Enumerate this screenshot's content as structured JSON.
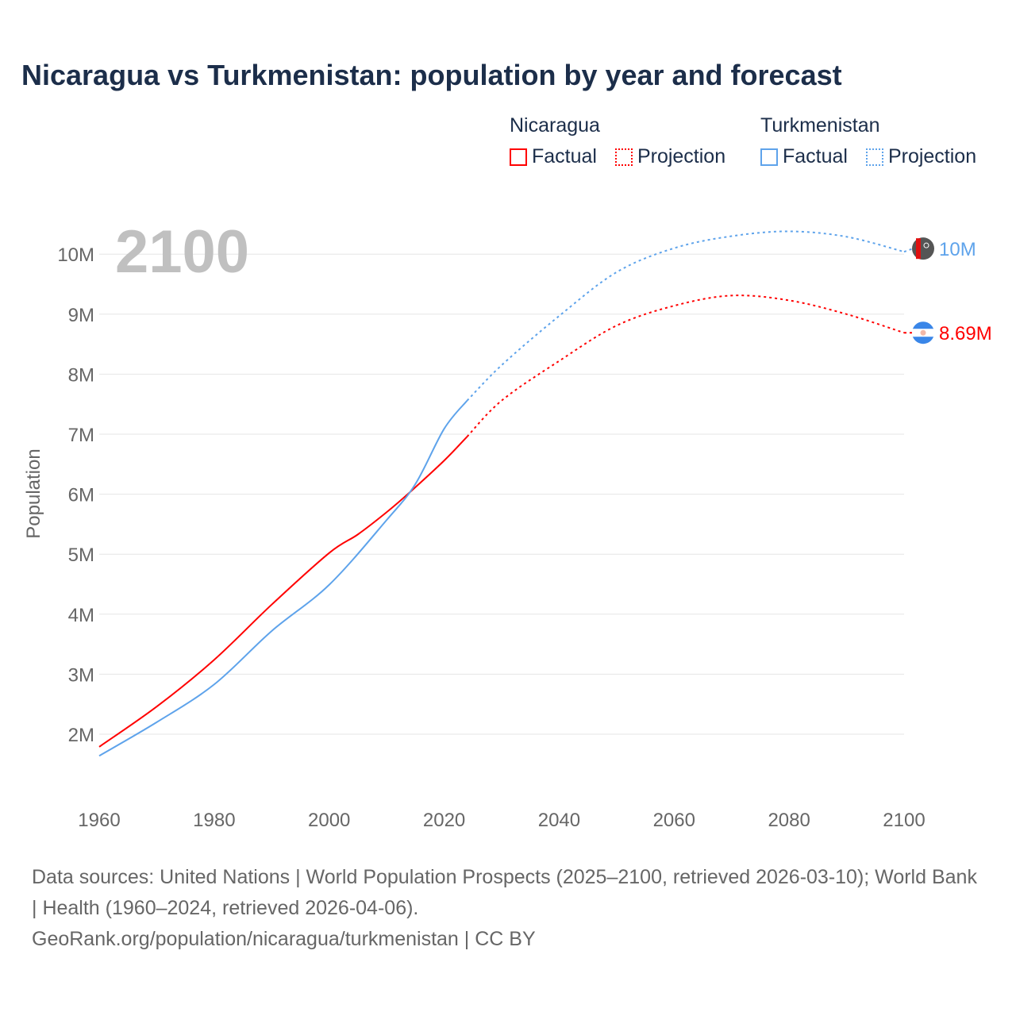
{
  "title": "Nicaragua vs Turkmenistan: population by year and forecast",
  "legend": {
    "groups": [
      {
        "name": "Nicaragua",
        "factual": "Factual",
        "projection": "Projection",
        "color": "#ff0000"
      },
      {
        "name": "Turkmenistan",
        "factual": "Factual",
        "projection": "Projection",
        "color": "#5ea3eb"
      }
    ]
  },
  "year_label": "2100",
  "footer": {
    "sources": "Data sources: United Nations | World Population Prospects (2025–2100, retrieved 2026-03-10); World Bank | Health (1960–2024, retrieved 2026-04-06).",
    "link": "GeoRank.org/population/nicaragua/turkmenistan | CC BY"
  },
  "chart_data": {
    "type": "line",
    "ylabel": "Population",
    "xlim": [
      1960,
      2100
    ],
    "ylim": [
      1,
      10.9
    ],
    "x_ticks": [
      1960,
      1980,
      2000,
      2020,
      2040,
      2060,
      2080,
      2100
    ],
    "y_ticks": [
      {
        "v": 2,
        "label": "2M"
      },
      {
        "v": 3,
        "label": "3M"
      },
      {
        "v": 4,
        "label": "4M"
      },
      {
        "v": 5,
        "label": "5M"
      },
      {
        "v": 6,
        "label": "6M"
      },
      {
        "v": 7,
        "label": "7M"
      },
      {
        "v": 8,
        "label": "8M"
      },
      {
        "v": 9,
        "label": "9M"
      },
      {
        "v": 10,
        "label": "10M"
      }
    ],
    "grid": true,
    "series": [
      {
        "name": "Nicaragua",
        "color": "#ff0000",
        "end_label": "8.69M",
        "factual": [
          [
            1960,
            1.79
          ],
          [
            1970,
            2.46
          ],
          [
            1980,
            3.24
          ],
          [
            1990,
            4.16
          ],
          [
            2000,
            5.02
          ],
          [
            2005,
            5.33
          ],
          [
            2010,
            5.7
          ],
          [
            2014,
            6.03
          ],
          [
            2020,
            6.56
          ],
          [
            2024,
            6.96
          ]
        ],
        "projection": [
          [
            2024,
            6.96
          ],
          [
            2030,
            7.56
          ],
          [
            2040,
            8.22
          ],
          [
            2050,
            8.81
          ],
          [
            2060,
            9.14
          ],
          [
            2070,
            9.31
          ],
          [
            2080,
            9.23
          ],
          [
            2090,
            9.0
          ],
          [
            2100,
            8.69
          ]
        ]
      },
      {
        "name": "Turkmenistan",
        "color": "#5ea3eb",
        "end_label": "10M",
        "factual": [
          [
            1960,
            1.64
          ],
          [
            1970,
            2.2
          ],
          [
            1980,
            2.83
          ],
          [
            1990,
            3.72
          ],
          [
            2000,
            4.49
          ],
          [
            2010,
            5.57
          ],
          [
            2015,
            6.17
          ],
          [
            2020,
            7.09
          ],
          [
            2024,
            7.56
          ]
        ],
        "projection": [
          [
            2024,
            7.56
          ],
          [
            2030,
            8.15
          ],
          [
            2040,
            8.97
          ],
          [
            2050,
            9.7
          ],
          [
            2060,
            10.1
          ],
          [
            2070,
            10.3
          ],
          [
            2080,
            10.38
          ],
          [
            2090,
            10.29
          ],
          [
            2100,
            10.04
          ]
        ]
      }
    ]
  }
}
